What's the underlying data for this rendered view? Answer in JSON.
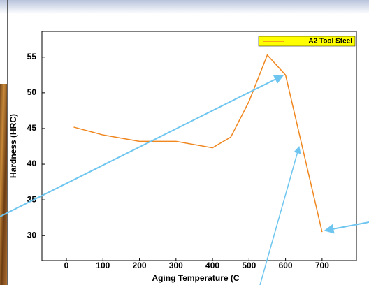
{
  "chart_data": {
    "type": "line",
    "x_label": "Aging Temperature (C",
    "y_label": "Hardness (HRC)",
    "x": [
      20,
      100,
      200,
      300,
      400,
      450,
      500,
      550,
      600,
      700
    ],
    "series": [
      {
        "name": "A2 Tool Steel",
        "color": "#f0861e",
        "values": [
          45.2,
          44.1,
          43.2,
          43.2,
          42.3,
          43.8,
          48.8,
          55.3,
          52.5,
          30.5
        ]
      }
    ],
    "xlim": [
      -67,
      794
    ],
    "xticks": [
      0,
      100,
      200,
      300,
      400,
      500,
      600,
      700
    ],
    "ylim": [
      26.5,
      58.6
    ],
    "yticks": [
      30,
      35,
      40,
      45,
      50,
      55
    ],
    "legend": "upper right",
    "legend_color": "#ffff00",
    "grid": false
  }
}
